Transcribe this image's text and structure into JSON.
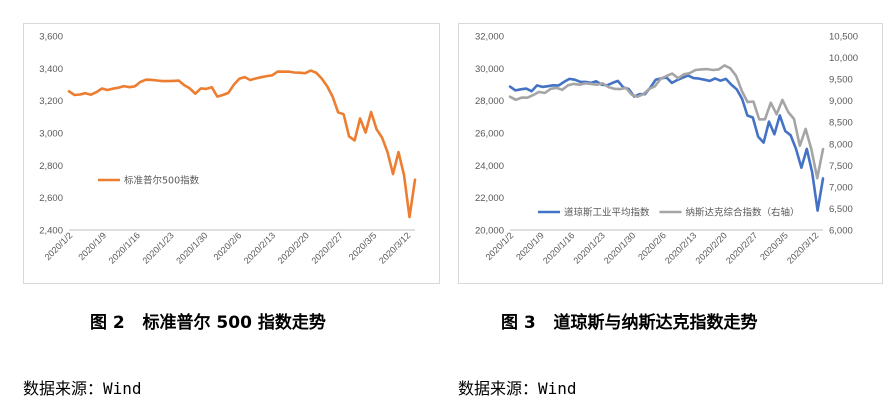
{
  "panels": [
    {
      "caption": "图 2   标准普尔 500 指数走势",
      "source": "数据来源：Wind"
    },
    {
      "caption": "图 3   道琼斯与纳斯达克指数走势",
      "source": "数据来源：Wind"
    }
  ],
  "chart_data": [
    {
      "type": "line",
      "x_ticks": [
        "2020/1/2",
        "2020/1/9",
        "2020/1/16",
        "2020/1/23",
        "2020/1/30",
        "2020/2/6",
        "2020/2/13",
        "2020/2/20",
        "2020/2/27",
        "2020/3/5",
        "2020/3/12"
      ],
      "ylim": [
        2400,
        3600
      ],
      "y_ticks": [
        "2,400",
        "2,600",
        "2,800",
        "3,000",
        "3,200",
        "3,400",
        "3,600"
      ],
      "grid": false,
      "legend_position": "lower-left",
      "colors": {
        "series": "#ED7D31",
        "axis_text": "#595959",
        "frame": "#D9D9D9"
      },
      "series": [
        {
          "name": "标准普尔500指数",
          "values": [
            3258,
            3235,
            3238,
            3246,
            3237,
            3253,
            3275,
            3266,
            3274,
            3280,
            3290,
            3283,
            3289,
            3316,
            3330,
            3329,
            3325,
            3321,
            3321,
            3322,
            3324,
            3295,
            3276,
            3243,
            3276,
            3273,
            3283,
            3225,
            3235,
            3248,
            3298,
            3335,
            3346,
            3328,
            3337,
            3345,
            3352,
            3357,
            3380,
            3379,
            3380,
            3374,
            3373,
            3370,
            3386,
            3373,
            3338,
            3290,
            3225,
            3128,
            3116,
            2979,
            2954,
            3090,
            3003,
            3130,
            3023,
            2972,
            2882,
            2746,
            2882,
            2741,
            2480,
            2711
          ]
        }
      ]
    },
    {
      "type": "line",
      "x_ticks": [
        "2020/1/2",
        "2020/1/9",
        "2020/1/16",
        "2020/1/23",
        "2020/1/30",
        "2020/2/6",
        "2020/2/13",
        "2020/2/20",
        "2020/2/27",
        "2020/3/5",
        "2020/3/12"
      ],
      "ylim": [
        20000,
        32000
      ],
      "y_ticks": [
        "20,000",
        "22,000",
        "24,000",
        "26,000",
        "28,000",
        "30,000",
        "32,000"
      ],
      "y2lim": [
        6000,
        10500
      ],
      "y2_ticks": [
        "6,000",
        "6,500",
        "7,000",
        "7,500",
        "8,000",
        "8,500",
        "9,000",
        "9,500",
        "10,000",
        "10,500"
      ],
      "grid": false,
      "legend_position": "lower-left",
      "colors": {
        "axis_text": "#595959",
        "frame": "#D9D9D9"
      },
      "series": [
        {
          "name": "道琼斯工业平均指数",
          "color": "#4472C4",
          "axis": "left",
          "values": [
            28869,
            28634,
            28704,
            28746,
            28584,
            28946,
            28851,
            28892,
            28948,
            28939,
            29159,
            29348,
            29298,
            29164,
            29161,
            29097,
            29195,
            28990,
            28953,
            29102,
            29222,
            28820,
            28722,
            28256,
            28399,
            28399,
            28807,
            29290,
            29379,
            29424,
            29102,
            29276,
            29423,
            29551,
            29398,
            29364,
            29296,
            29220,
            29379,
            29233,
            29348,
            28992,
            28703,
            28109,
            27081,
            26957,
            25766,
            25409,
            26703,
            25917,
            27091,
            26122,
            25865,
            25018,
            23851,
            25018,
            23554,
            21200,
            23185
          ]
        },
        {
          "name": "纳斯达克综合指数（右轴）",
          "color": "#A5A5A5",
          "axis": "right",
          "values": [
            9092,
            9020,
            9071,
            9068,
            9129,
            9203,
            9178,
            9273,
            9299,
            9251,
            9357,
            9388,
            9370,
            9403,
            9389,
            9370,
            9402,
            9314,
            9275,
            9269,
            9298,
            9139,
            9093,
            9150,
            9273,
            9334,
            9508,
            9572,
            9628,
            9520,
            9611,
            9638,
            9712,
            9726,
            9732,
            9711,
            9725,
            9817,
            9750,
            9576,
            9221,
            8966,
            8980,
            8566,
            8567,
            8952,
            8684,
            9018,
            8738,
            8575,
            7950,
            8344,
            7870,
            7201,
            7875
          ]
        }
      ]
    }
  ]
}
